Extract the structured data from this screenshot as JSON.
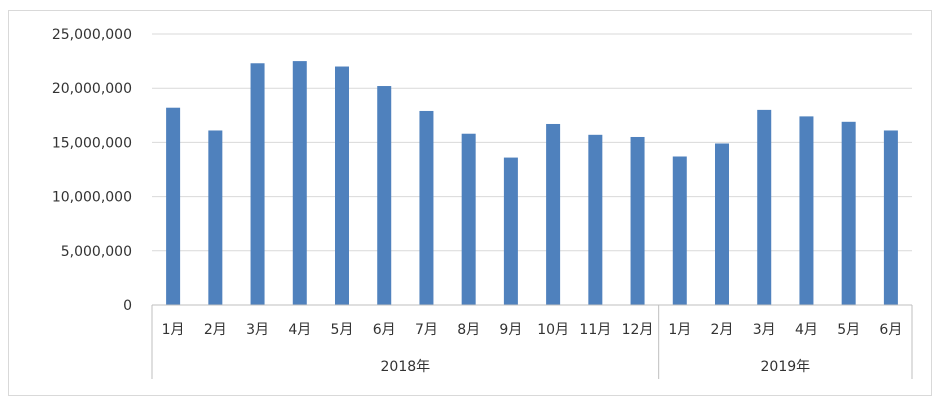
{
  "chart_data": {
    "type": "bar",
    "categories": [
      "1月",
      "2月",
      "3月",
      "4月",
      "5月",
      "6月",
      "7月",
      "8月",
      "9月",
      "10月",
      "11月",
      "12月",
      "1月",
      "2月",
      "3月",
      "4月",
      "5月",
      "6月"
    ],
    "groups": [
      {
        "label": "2018年",
        "count": 12
      },
      {
        "label": "2019年",
        "count": 6
      }
    ],
    "series": [
      {
        "values": [
          18200000,
          16100000,
          22300000,
          22500000,
          22000000,
          20200000,
          17900000,
          15800000,
          13600000,
          16700000,
          15700000,
          15500000,
          13700000,
          14900000,
          18000000,
          17400000,
          16900000,
          16100000
        ]
      }
    ],
    "ylim": [
      0,
      25000000
    ],
    "yticks": [
      0,
      5000000,
      10000000,
      15000000,
      20000000,
      25000000
    ],
    "ytick_labels": [
      "0",
      "5,000,000",
      "10,000,000",
      "15,000,000",
      "20,000,000",
      "25,000,000"
    ],
    "grid": true,
    "bar_color": "#4f81bd",
    "grid_color": "#d9d9d9"
  }
}
